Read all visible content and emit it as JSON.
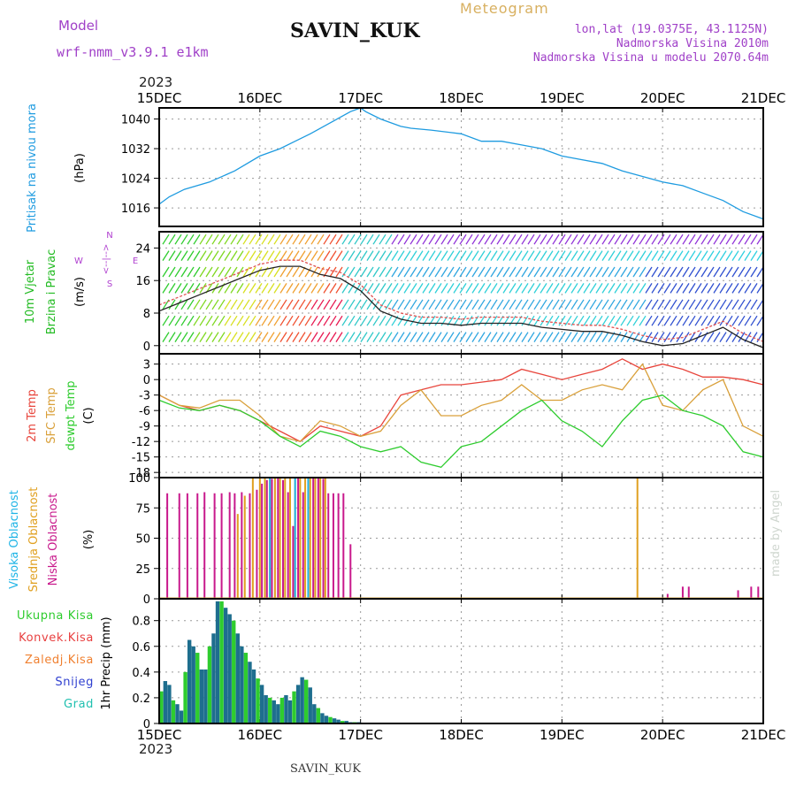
{
  "header": {
    "model_label": "Model",
    "model_value": "wrf-nmm_v3.9.1  e1km",
    "station": "SAVIN_KUK",
    "product": "Meteogram",
    "lonlat": "lon,lat (19.0375E, 43.1125N)",
    "elevation": "Nadmorska Visina 2010m",
    "model_elevation": "Nadmorska Visina u modelu 2070.64m",
    "year_top": "2023",
    "year_bottom": "2023",
    "footer_station": "SAVIN_KUK",
    "credit": "made by Angel"
  },
  "colors": {
    "pressure": "#1e9be0",
    "t2m": "#e8453c",
    "sfc": "#d9a03a",
    "dewpt": "#2ecc2e",
    "cloud_high": "#1eb4e6",
    "cloud_mid": "#e0a020",
    "cloud_low": "#c8198c",
    "wind_label": "#22bb22",
    "compass": "#b040d0",
    "header_purple": "#a040c8",
    "product_gold": "#d8b060",
    "rain_total": "#2ecc2e",
    "rain_conv": "#e84040",
    "rain_frozen": "#f08030",
    "snow": "#3040d0",
    "hail": "#20c0b0",
    "precip_bar": "#1e6e8e"
  },
  "chart_data": [
    {
      "type": "line",
      "panel": "pressure",
      "ylabel": "Pritisak na nivou mora",
      "unit": "(hPa)",
      "x_ticks": [
        "15DEC",
        "16DEC",
        "17DEC",
        "18DEC",
        "19DEC",
        "20DEC",
        "21DEC"
      ],
      "ylim": [
        1011,
        1043
      ],
      "y_ticks": [
        1016,
        1024,
        1032,
        1040
      ],
      "grid": true,
      "series": [
        {
          "x": [
            0,
            0.1,
            0.25,
            0.5,
            0.75,
            1.0,
            1.2,
            1.35,
            1.5,
            1.7,
            1.9,
            2.0,
            2.05,
            2.2,
            2.4,
            2.5,
            2.7,
            3.0,
            3.2,
            3.4,
            3.6,
            3.8,
            4.0,
            4.2,
            4.4,
            4.6,
            4.8,
            5.0,
            5.2,
            5.4,
            5.6,
            5.8,
            6.0
          ],
          "y": [
            1017,
            1019,
            1021,
            1023,
            1026,
            1030,
            1032,
            1034,
            1036,
            1039,
            1042,
            1043,
            1042,
            1040,
            1038,
            1037.5,
            1037,
            1036,
            1034,
            1034,
            1033,
            1032,
            1030,
            1029,
            1028,
            1026,
            1024.5,
            1023,
            1022,
            1020,
            1018,
            1015,
            1013
          ]
        }
      ]
    },
    {
      "type": "line",
      "panel": "wind",
      "ylabel_1": "10m Vjetar",
      "ylabel_2": "Brzina i Pravac",
      "unit": "(m/s)",
      "compass": [
        "N",
        "E",
        "S",
        "W"
      ],
      "compass_arrow": "<--|-->",
      "ylim": [
        -2,
        28
      ],
      "y_ticks": [
        0,
        8,
        16,
        24
      ],
      "grid": true,
      "series": [
        {
          "name": "speed",
          "x": [
            0,
            0.2,
            0.4,
            0.6,
            0.8,
            1.0,
            1.2,
            1.4,
            1.6,
            1.8,
            2.0,
            2.2,
            2.4,
            2.6,
            2.8,
            3.0,
            3.2,
            3.4,
            3.6,
            3.8,
            4.0,
            4.2,
            4.4,
            4.6,
            4.8,
            5.0,
            5.2,
            5.4,
            5.6,
            5.8,
            6.0
          ],
          "y": [
            10,
            12,
            14,
            16,
            18,
            20,
            21,
            21,
            19,
            18,
            15,
            10,
            8,
            7,
            7,
            6.5,
            7,
            7,
            7,
            6,
            5.5,
            5,
            5,
            4,
            2.5,
            1.5,
            2,
            4,
            6,
            3,
            1
          ]
        }
      ]
    },
    {
      "type": "line",
      "panel": "temperature",
      "ylabels": [
        "2m Temp",
        "SFC Temp",
        "dewpt Temp"
      ],
      "unit": "(C)",
      "ylim": [
        -19,
        5
      ],
      "y_ticks": [
        3,
        0,
        -3,
        -6,
        -9,
        -12,
        -15,
        -18
      ],
      "grid": true,
      "series": [
        {
          "name": "2m Temp",
          "x": [
            0,
            0.2,
            0.4,
            0.6,
            0.8,
            1.0,
            1.2,
            1.4,
            1.6,
            1.8,
            2.0,
            2.2,
            2.4,
            2.6,
            2.8,
            3.0,
            3.2,
            3.4,
            3.6,
            3.8,
            4.0,
            4.2,
            4.4,
            4.6,
            4.8,
            5.0,
            5.2,
            5.4,
            5.6,
            5.8,
            6.0
          ],
          "y": [
            -3,
            -5,
            -6,
            -5,
            -6,
            -8,
            -10,
            -12,
            -9,
            -10,
            -11,
            -9,
            -3,
            -2,
            -1,
            -1,
            -0.5,
            0,
            2,
            1,
            0,
            1,
            2,
            4,
            2,
            3,
            2,
            0.5,
            0.5,
            0,
            -1
          ]
        },
        {
          "name": "SFC Temp",
          "x": [
            0,
            0.2,
            0.4,
            0.6,
            0.8,
            1.0,
            1.2,
            1.4,
            1.6,
            1.8,
            2.0,
            2.2,
            2.4,
            2.6,
            2.8,
            3.0,
            3.2,
            3.4,
            3.6,
            3.8,
            4.0,
            4.2,
            4.4,
            4.6,
            4.8,
            5.0,
            5.2,
            5.4,
            5.6,
            5.8,
            6.0
          ],
          "y": [
            -3,
            -5,
            -5.5,
            -4,
            -4,
            -7,
            -11,
            -12,
            -8,
            -9,
            -11,
            -10,
            -5,
            -2,
            -7,
            -7,
            -5,
            -4,
            -1,
            -4,
            -4,
            -2,
            -1,
            -2,
            3,
            -5,
            -6,
            -2,
            0,
            -9,
            -11
          ]
        },
        {
          "name": "dewpt Temp",
          "x": [
            0,
            0.2,
            0.4,
            0.6,
            0.8,
            1.0,
            1.2,
            1.4,
            1.6,
            1.8,
            2.0,
            2.2,
            2.4,
            2.6,
            2.8,
            3.0,
            3.2,
            3.4,
            3.6,
            3.8,
            4.0,
            4.2,
            4.4,
            4.6,
            4.8,
            5.0,
            5.2,
            5.4,
            5.6,
            5.8,
            6.0
          ],
          "y": [
            -4,
            -5.5,
            -6,
            -5,
            -6,
            -8,
            -11,
            -13,
            -10,
            -11,
            -13,
            -14,
            -13,
            -16,
            -17,
            -13,
            -12,
            -9,
            -6,
            -4,
            -8,
            -10,
            -13,
            -8,
            -4,
            -3,
            -6,
            -7,
            -9,
            -14,
            -15
          ]
        }
      ]
    },
    {
      "type": "bar",
      "panel": "clouds",
      "ylabels": [
        "Visoka Oblacnost",
        "Srednja Oblacnost",
        "Niska Oblacnost"
      ],
      "unit": "(%)",
      "ylim": [
        0,
        100
      ],
      "y_ticks": [
        0,
        25,
        50,
        75,
        100
      ],
      "grid": true,
      "series": [
        {
          "name": "Niska Oblacnost",
          "x": [
            0.08,
            0.2,
            0.28,
            0.38,
            0.45,
            0.55,
            0.62,
            0.7,
            0.75,
            0.82,
            0.9,
            0.97,
            1.02,
            1.07,
            1.12,
            1.18,
            1.23,
            1.28,
            1.33,
            1.38,
            1.43,
            1.48,
            1.53,
            1.58,
            1.63,
            1.68,
            1.73,
            1.78,
            1.83,
            1.9,
            5.05,
            5.2,
            5.26,
            5.75,
            5.88,
            5.95
          ],
          "y": [
            87,
            87,
            87,
            87,
            88,
            87,
            87,
            88,
            87,
            88,
            87,
            90,
            95,
            98,
            99,
            100,
            98,
            88,
            60,
            100,
            88,
            100,
            100,
            100,
            99,
            87,
            87,
            87,
            87,
            45,
            4,
            10,
            10,
            7,
            10,
            10
          ]
        },
        {
          "name": "Srednja Oblacnost",
          "x": [
            0.78,
            0.85,
            0.93,
            1.0,
            1.05,
            1.1,
            1.15,
            1.2,
            1.25,
            1.3,
            1.35,
            1.4,
            1.45,
            1.5,
            1.55,
            1.6,
            1.65,
            4.75
          ],
          "y": [
            70,
            85,
            100,
            100,
            100,
            100,
            100,
            100,
            100,
            100,
            100,
            100,
            100,
            100,
            100,
            100,
            100,
            100
          ]
        },
        {
          "name": "Visoka Oblacnost",
          "x": [
            1.1,
            1.35,
            1.48
          ],
          "y": [
            100,
            100,
            100
          ]
        }
      ]
    },
    {
      "type": "bar",
      "panel": "precipitation",
      "ylabel": "1hr Precip (mm)",
      "legend": [
        "Ukupna Kisa",
        "Konvek.Kisa",
        "Zaledj.Kisa",
        "Snijeg",
        "Grad"
      ],
      "ylim": [
        0,
        0.97
      ],
      "y_ticks": [
        0,
        0.2,
        0.4,
        0.6,
        0.8
      ],
      "grid": true,
      "x": [
        0.02,
        0.06,
        0.1,
        0.14,
        0.18,
        0.22,
        0.26,
        0.3,
        0.34,
        0.38,
        0.42,
        0.46,
        0.5,
        0.54,
        0.58,
        0.62,
        0.66,
        0.7,
        0.74,
        0.78,
        0.82,
        0.86,
        0.9,
        0.94,
        0.98,
        1.02,
        1.06,
        1.1,
        1.14,
        1.18,
        1.22,
        1.26,
        1.3,
        1.34,
        1.38,
        1.42,
        1.46,
        1.5,
        1.54,
        1.58,
        1.62,
        1.66,
        1.7,
        1.74,
        1.78,
        1.82,
        1.86,
        1.9,
        1.94,
        1.98
      ],
      "values": [
        0.25,
        0.33,
        0.3,
        0.18,
        0.15,
        0.1,
        0.4,
        0.65,
        0.6,
        0.55,
        0.42,
        0.42,
        0.6,
        0.7,
        0.95,
        0.95,
        0.9,
        0.85,
        0.8,
        0.7,
        0.6,
        0.55,
        0.48,
        0.42,
        0.35,
        0.3,
        0.22,
        0.2,
        0.18,
        0.15,
        0.2,
        0.22,
        0.18,
        0.25,
        0.3,
        0.36,
        0.34,
        0.28,
        0.15,
        0.12,
        0.08,
        0.06,
        0.05,
        0.04,
        0.03,
        0.02,
        0.02,
        0.01,
        0.01,
        0.01
      ]
    }
  ]
}
